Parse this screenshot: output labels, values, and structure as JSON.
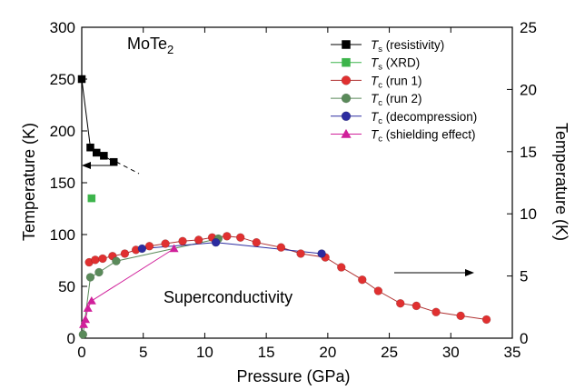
{
  "chart_data": {
    "type": "scatter",
    "title": "",
    "xlabel": "Pressure (GPa)",
    "ylabel": "Temperature (K)",
    "y2label": "Temperature (K)",
    "xlim": [
      0,
      35
    ],
    "ylim": [
      0,
      300
    ],
    "y2lim": [
      0,
      25
    ],
    "xticks": [
      0,
      5,
      10,
      15,
      20,
      25,
      30,
      35
    ],
    "yticks": [
      0,
      50,
      100,
      150,
      200,
      250,
      300
    ],
    "y2ticks": [
      0,
      5,
      10,
      15,
      20,
      25
    ],
    "grid": false,
    "legend_position": "top-right",
    "annotations": {
      "compound_main": "MoTe",
      "compound_sub": "2",
      "region_label": "Superconductivity"
    },
    "series": [
      {
        "legend_base": "T",
        "legend_sub": "s",
        "legend_rest": " (resistivity)",
        "axis": "left",
        "marker": "square",
        "color": "#000000",
        "line": true,
        "x": [
          0,
          0.7,
          1.2,
          1.8,
          2.6
        ],
        "y": [
          250,
          184,
          179,
          176,
          170
        ]
      },
      {
        "legend_base": "T",
        "legend_sub": "s",
        "legend_rest": " (XRD)",
        "axis": "left",
        "marker": "square",
        "color": "#3cb44b",
        "line": false,
        "x": [
          0.8
        ],
        "y": [
          135
        ]
      },
      {
        "legend_base": "T",
        "legend_sub": "c",
        "legend_rest": " (run 1)",
        "axis": "right",
        "marker": "circle",
        "color": "#e03030",
        "line": true,
        "line_color": "#b03030",
        "x": [
          0.6,
          1.1,
          1.7,
          2.5,
          3.5,
          4.4,
          5.5,
          6.8,
          8.2,
          9.5,
          10.6,
          11.8,
          12.9,
          14.2,
          16.2,
          17.8,
          19.8,
          21.1,
          22.8,
          24.1,
          25.9,
          27.2,
          28.8,
          30.8,
          32.9
        ],
        "y": [
          6.1,
          6.3,
          6.4,
          6.6,
          6.8,
          7.1,
          7.4,
          7.6,
          7.8,
          7.9,
          8.1,
          8.2,
          8.1,
          7.7,
          7.3,
          6.8,
          6.5,
          5.7,
          4.7,
          3.8,
          2.8,
          2.6,
          2.1,
          1.8,
          1.5
        ]
      },
      {
        "legend_base": "T",
        "legend_sub": "c",
        "legend_rest": " (run 2)",
        "axis": "right",
        "marker": "circle",
        "color": "#5a8a5a",
        "line": true,
        "line_color": "#5a8a5a",
        "x": [
          0.1,
          0.7,
          1.4,
          2.8,
          11.1
        ],
        "y": [
          0.3,
          4.9,
          5.3,
          6.2,
          8.0
        ]
      },
      {
        "legend_base": "T",
        "legend_sub": "c",
        "legend_rest": " (decompression)",
        "axis": "right",
        "marker": "circle",
        "color": "#2c2ca0",
        "line": true,
        "line_color": "#2c2ca0",
        "x": [
          4.9,
          10.9,
          19.5
        ],
        "y": [
          7.2,
          7.7,
          6.8
        ]
      },
      {
        "legend_base": "T",
        "legend_sub": "c",
        "legend_rest": " (shielding effect)",
        "axis": "right",
        "marker": "triangle",
        "color": "#d0209a",
        "line": true,
        "line_color": "#d0209a",
        "x": [
          0.15,
          0.3,
          0.5,
          0.8,
          7.5
        ],
        "y": [
          1.1,
          1.5,
          2.4,
          3.0,
          7.2
        ]
      }
    ]
  }
}
